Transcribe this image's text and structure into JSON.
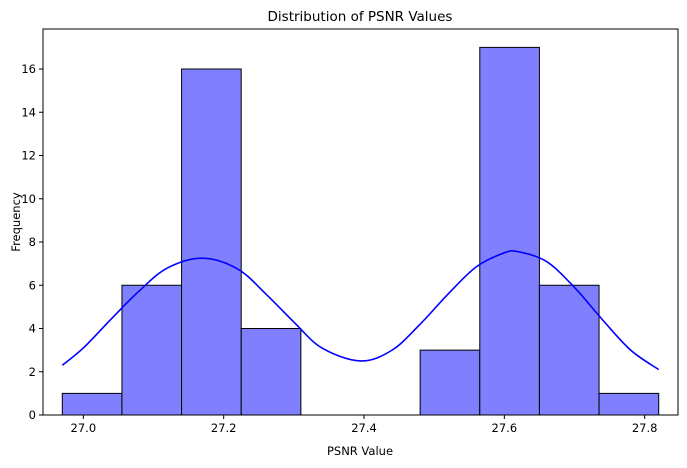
{
  "chart_data": {
    "type": "bar",
    "title": "Distribution of PSNR Values",
    "xlabel": "PSNR Value",
    "ylabel": "Frequency",
    "xlim": [
      26.9425,
      27.8475
    ],
    "ylim": [
      0,
      17.85
    ],
    "xticks": [
      "27.0",
      "27.2",
      "27.4",
      "27.6",
      "27.8"
    ],
    "yticks": [
      "0",
      "2",
      "4",
      "6",
      "8",
      "10",
      "12",
      "14",
      "16"
    ],
    "bins": [
      {
        "x0": 26.97,
        "x1": 27.055,
        "count": 1
      },
      {
        "x0": 27.055,
        "x1": 27.14,
        "count": 6
      },
      {
        "x0": 27.14,
        "x1": 27.225,
        "count": 16
      },
      {
        "x0": 27.225,
        "x1": 27.31,
        "count": 4
      },
      {
        "x0": 27.31,
        "x1": 27.395,
        "count": 0
      },
      {
        "x0": 27.395,
        "x1": 27.48,
        "count": 0
      },
      {
        "x0": 27.48,
        "x1": 27.565,
        "count": 3
      },
      {
        "x0": 27.565,
        "x1": 27.65,
        "count": 17
      },
      {
        "x0": 27.65,
        "x1": 27.735,
        "count": 6
      },
      {
        "x0": 27.735,
        "x1": 27.82,
        "count": 1
      }
    ],
    "kde": {
      "x": [
        26.97,
        27.0,
        27.04,
        27.08,
        27.12,
        27.17,
        27.22,
        27.26,
        27.3,
        27.34,
        27.395,
        27.44,
        27.48,
        27.52,
        27.56,
        27.6,
        27.62,
        27.66,
        27.7,
        27.74,
        27.78,
        27.82
      ],
      "y": [
        2.3,
        3.1,
        4.45,
        5.75,
        6.8,
        7.25,
        6.75,
        5.6,
        4.3,
        3.1,
        2.5,
        3.0,
        4.2,
        5.6,
        6.85,
        7.5,
        7.55,
        7.1,
        5.9,
        4.4,
        3.0,
        2.1
      ]
    },
    "colors": {
      "bar_fill": "#8080ff",
      "bar_edge": "#000000",
      "kde_line": "#0000ff"
    },
    "grid": false,
    "legend": "none"
  }
}
